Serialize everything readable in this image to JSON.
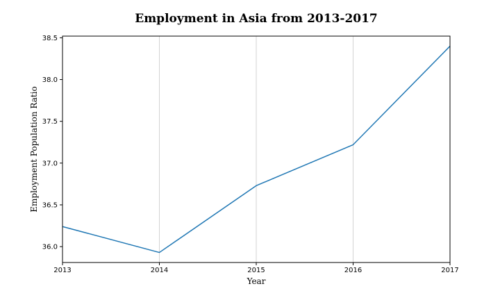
{
  "chart_data": {
    "type": "line",
    "title": "Employment in Asia from 2013-2017",
    "xlabel": "Year",
    "ylabel": "Employment Population Ratio",
    "x": [
      2013,
      2014,
      2015,
      2016,
      2017
    ],
    "x_tick_labels": [
      "2013",
      "2014",
      "2015",
      "2016",
      "2017"
    ],
    "y_tick_values": [
      36.0,
      36.5,
      37.0,
      37.5,
      38.0,
      38.5
    ],
    "y_tick_labels": [
      "36.0",
      "36.5",
      "37.0",
      "37.5",
      "38.0",
      "38.5"
    ],
    "xlim": [
      2013,
      2017
    ],
    "ylim": [
      35.81,
      38.52
    ],
    "grid": "vertical",
    "series": [
      {
        "values": [
          36.24,
          35.93,
          36.73,
          37.22,
          38.4
        ],
        "color": "#1f77b4"
      }
    ]
  },
  "colors": {
    "line": "#1f77b4",
    "grid": "#d3d3d3",
    "axis": "#000000"
  }
}
